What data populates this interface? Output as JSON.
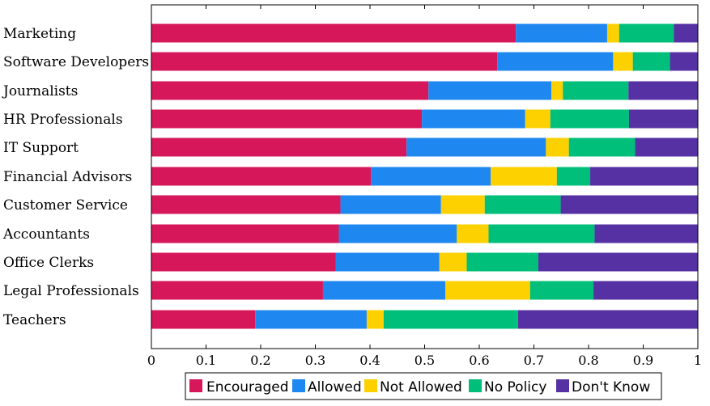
{
  "chart_data": {
    "type": "bar",
    "orientation": "horizontal",
    "stacked": true,
    "categories": [
      "Marketing",
      "Software Developers",
      "Journalists",
      "HR Professionals",
      "IT Support",
      "Financial Advisors",
      "Customer Service",
      "Accountants",
      "Office Clerks",
      "Legal Professionals",
      "Teachers"
    ],
    "series": [
      {
        "name": "Encouraged",
        "color": "#d6175a",
        "values": [
          0.667,
          0.633,
          0.507,
          0.495,
          0.467,
          0.402,
          0.346,
          0.343,
          0.337,
          0.314,
          0.19
        ]
      },
      {
        "name": "Allowed",
        "color": "#1f87f0",
        "values": [
          0.167,
          0.212,
          0.225,
          0.189,
          0.255,
          0.219,
          0.184,
          0.216,
          0.19,
          0.224,
          0.204
        ]
      },
      {
        "name": "Not Allowed",
        "color": "#fdd000",
        "values": [
          0.022,
          0.036,
          0.021,
          0.046,
          0.042,
          0.121,
          0.08,
          0.058,
          0.05,
          0.155,
          0.031
        ]
      },
      {
        "name": "No Policy",
        "color": "#00bf7a",
        "values": [
          0.1,
          0.068,
          0.12,
          0.144,
          0.121,
          0.061,
          0.139,
          0.194,
          0.131,
          0.116,
          0.246
        ]
      },
      {
        "name": "Don't Know",
        "color": "#5631a3",
        "values": [
          0.044,
          0.051,
          0.127,
          0.126,
          0.115,
          0.197,
          0.251,
          0.189,
          0.292,
          0.191,
          0.329
        ]
      }
    ],
    "xlim": [
      0,
      1
    ],
    "xticks": [
      "0",
      "0.1",
      "0.2",
      "0.3",
      "0.4",
      "0.5",
      "0.6",
      "0.7",
      "0.8",
      "0.9",
      "1"
    ],
    "grid": false,
    "legend": "bottom"
  }
}
